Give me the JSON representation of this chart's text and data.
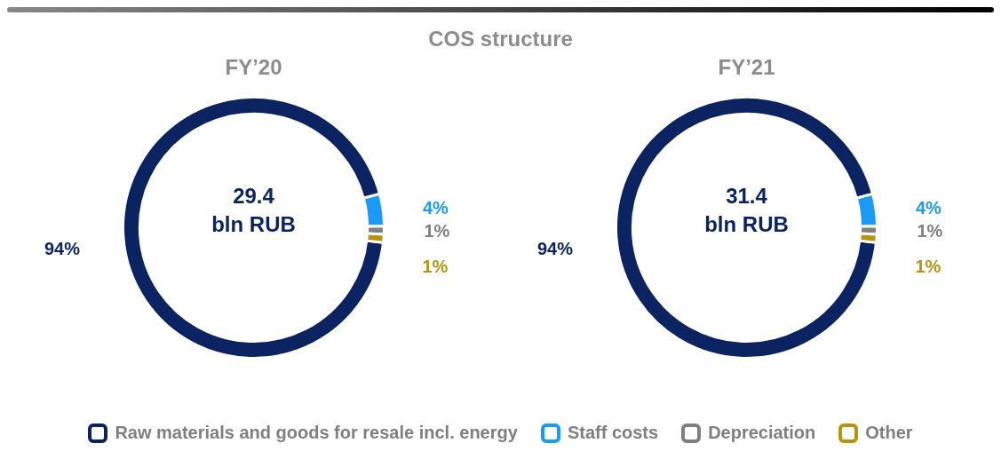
{
  "chart_data": [
    {
      "type": "donut",
      "subtitle": "COS structure",
      "title": "FY’20",
      "categories": [
        "Raw materials and goods for resale incl. energy",
        "Staff costs",
        "Depreciation",
        "Other"
      ],
      "values": [
        94,
        4,
        1,
        1
      ],
      "value_labels": [
        "94%",
        "4%",
        "1%",
        "1%"
      ],
      "colors": [
        "#0b2461",
        "#1a9af5",
        "#7f7f7f",
        "#b8930f"
      ],
      "annotations": [
        "29.4",
        "bln RUB"
      ],
      "legend": "bottom"
    },
    {
      "type": "donut",
      "title": "FY’21",
      "categories": [
        null,
        null,
        null,
        null
      ],
      "values": [
        94,
        4,
        1,
        1
      ],
      "value_labels": [
        "94%",
        "4%",
        "1%",
        "1%"
      ],
      "colors": [
        "#0b2461",
        "#1a9af5",
        "#7f7f7f",
        "#b8930f"
      ],
      "annotations": [
        "31.4",
        "bln RUB"
      ]
    }
  ]
}
